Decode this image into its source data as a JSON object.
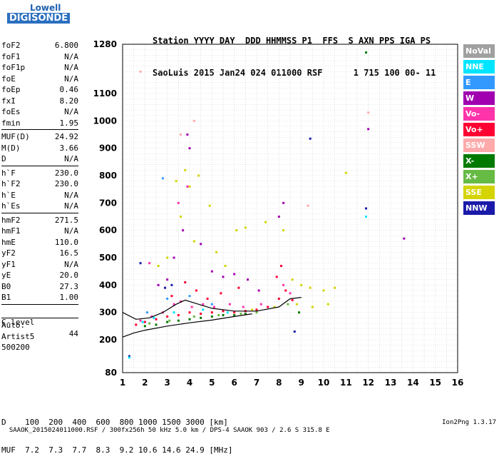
{
  "logo": {
    "brand": "Lowell",
    "product": "DIGISONDE"
  },
  "header": {
    "line1": "Station YYYY DAY  DDD HHMMSS P1  FFS  S AXN PPS IGA PS",
    "line2": "SaoLuis 2015 Jan24 024 011000 RSF      1 715 100 00- 11"
  },
  "params_group1": [
    {
      "key": "foF2",
      "val": "6.800"
    },
    {
      "key": "foF1",
      "val": "N/A"
    },
    {
      "key": "foF1p",
      "val": "N/A"
    },
    {
      "key": "foE",
      "val": "N/A"
    },
    {
      "key": "foEp",
      "val": "0.46"
    },
    {
      "key": "fxI",
      "val": "8.20"
    },
    {
      "key": "foEs",
      "val": "N/A"
    },
    {
      "key": "fmin",
      "val": "1.95"
    }
  ],
  "params_group2": [
    {
      "key": "MUF(D)",
      "val": "24.92"
    },
    {
      "key": "M(D)",
      "val": "3.66"
    },
    {
      "key": "D",
      "val": "N/A"
    }
  ],
  "params_group3": [
    {
      "key": "h`F",
      "val": "230.0"
    },
    {
      "key": "h`F2",
      "val": "230.0"
    },
    {
      "key": "h`E",
      "val": "N/A"
    },
    {
      "key": "h`Es",
      "val": "N/A"
    }
  ],
  "params_group4": [
    {
      "key": "hmF2",
      "val": "271.5"
    },
    {
      "key": "hmF1",
      "val": "N/A"
    },
    {
      "key": "hmE",
      "val": "110.0"
    },
    {
      "key": "yF2",
      "val": "16.5"
    },
    {
      "key": "yF1",
      "val": "N/A"
    },
    {
      "key": "yE",
      "val": "20.0"
    },
    {
      "key": "B0",
      "val": "27.3"
    },
    {
      "key": "B1",
      "val": "1.00"
    }
  ],
  "clevel": {
    "key": "C-level",
    "val": "44"
  },
  "auto": [
    "Auto:",
    "Artist5",
    "500200"
  ],
  "legend": [
    {
      "label": "NoVal",
      "color": "#a0a0a0"
    },
    {
      "label": "NNE",
      "color": "#00e5ff"
    },
    {
      "label": "E",
      "color": "#3399ff"
    },
    {
      "label": "W",
      "color": "#a000b0"
    },
    {
      "label": "Vo-",
      "color": "#ff33aa"
    },
    {
      "label": "Vo+",
      "color": "#ff0033"
    },
    {
      "label": "SSW",
      "color": "#ffaaaa"
    },
    {
      "label": "X-",
      "color": "#007a00"
    },
    {
      "label": "X+",
      "color": "#66bb44"
    },
    {
      "label": "SSE",
      "color": "#d4d400"
    },
    {
      "label": "NNW",
      "color": "#1a1aaa"
    }
  ],
  "footer": {
    "line1": "D    100  200  400  600  800 1000 1500 3000 [km]",
    "line2": "MUF  7.2  7.3  7.7  8.3  9.2 10.6 14.6 24.9 [MHz]"
  },
  "footnote": {
    "left": "SAAOK_2015024011000.RSF / 300fx256h 50 kHz 5.0 km / DPS-4 SAAOK 903 / 2.6 S 315.8 E",
    "right": "Ion2Png 1.3.17"
  },
  "chart_data": {
    "type": "scatter",
    "title": "",
    "xlabel": "",
    "ylabel": "",
    "xlim": [
      1,
      16
    ],
    "ylim": [
      80,
      1280
    ],
    "grid": true,
    "x_ticks": [
      1,
      2,
      3,
      4,
      5,
      6,
      7,
      8,
      9,
      10,
      11,
      12,
      13,
      14,
      15,
      16
    ],
    "y_ticks": [
      80,
      200,
      300,
      400,
      500,
      600,
      700,
      800,
      900,
      1000,
      1100,
      1280
    ],
    "series": [
      {
        "name": "Vo+",
        "points": [
          [
            1.6,
            255
          ],
          [
            2.0,
            265
          ],
          [
            2.5,
            275
          ],
          [
            3.0,
            285
          ],
          [
            3.5,
            290
          ],
          [
            4.0,
            300
          ],
          [
            4.5,
            295
          ],
          [
            5.0,
            300
          ],
          [
            5.5,
            305
          ],
          [
            6.0,
            300
          ],
          [
            6.5,
            305
          ],
          [
            7.0,
            310
          ],
          [
            7.5,
            320
          ],
          [
            8.0,
            350
          ],
          [
            8.3,
            380
          ],
          [
            8.6,
            345
          ],
          [
            3.2,
            360
          ],
          [
            3.8,
            410
          ],
          [
            4.3,
            380
          ],
          [
            4.8,
            350
          ],
          [
            5.4,
            370
          ],
          [
            6.2,
            390
          ],
          [
            7.9,
            430
          ],
          [
            8.1,
            470
          ]
        ]
      },
      {
        "name": "Vo-",
        "points": [
          [
            1.8,
            270
          ],
          [
            2.3,
            285
          ],
          [
            2.8,
            300
          ],
          [
            3.3,
            330
          ],
          [
            3.6,
            340
          ],
          [
            4.1,
            320
          ],
          [
            4.6,
            330
          ],
          [
            5.1,
            320
          ],
          [
            5.8,
            330
          ],
          [
            6.4,
            320
          ],
          [
            7.2,
            330
          ],
          [
            8.2,
            400
          ],
          [
            8.5,
            370
          ],
          [
            2.2,
            480
          ],
          [
            3.5,
            700
          ],
          [
            3.9,
            760
          ]
        ]
      },
      {
        "name": "SSE",
        "points": [
          [
            3.4,
            780
          ],
          [
            3.8,
            820
          ],
          [
            4.0,
            760
          ],
          [
            4.4,
            800
          ],
          [
            4.9,
            690
          ],
          [
            3.6,
            650
          ],
          [
            4.2,
            560
          ],
          [
            5.2,
            520
          ],
          [
            5.6,
            470
          ],
          [
            6.1,
            600
          ],
          [
            6.5,
            610
          ],
          [
            7.4,
            630
          ],
          [
            8.2,
            600
          ],
          [
            8.6,
            420
          ],
          [
            9.0,
            400
          ],
          [
            9.4,
            390
          ],
          [
            10.0,
            380
          ],
          [
            10.5,
            390
          ],
          [
            8.8,
            330
          ],
          [
            9.5,
            320
          ],
          [
            10.2,
            330
          ],
          [
            7.8,
            320
          ],
          [
            6.8,
            310
          ],
          [
            2.6,
            470
          ],
          [
            3.0,
            500
          ],
          [
            11.0,
            810
          ]
        ]
      },
      {
        "name": "W",
        "points": [
          [
            2.6,
            400
          ],
          [
            3.0,
            420
          ],
          [
            3.3,
            500
          ],
          [
            3.7,
            600
          ],
          [
            4.0,
            900
          ],
          [
            3.9,
            950
          ],
          [
            4.5,
            550
          ],
          [
            5.0,
            450
          ],
          [
            5.5,
            430
          ],
          [
            6.0,
            440
          ],
          [
            6.6,
            420
          ],
          [
            7.1,
            380
          ],
          [
            8.0,
            650
          ],
          [
            8.2,
            700
          ],
          [
            12.0,
            970
          ],
          [
            13.6,
            570
          ]
        ]
      },
      {
        "name": "X-",
        "points": [
          [
            2.0,
            250
          ],
          [
            2.5,
            255
          ],
          [
            3.0,
            265
          ],
          [
            3.5,
            270
          ],
          [
            4.0,
            275
          ],
          [
            4.5,
            280
          ],
          [
            5.0,
            285
          ],
          [
            5.5,
            290
          ],
          [
            6.0,
            290
          ],
          [
            6.5,
            295
          ],
          [
            8.9,
            300
          ],
          [
            11.9,
            1250
          ]
        ]
      },
      {
        "name": "X+",
        "points": [
          [
            2.2,
            260
          ],
          [
            3.1,
            270
          ],
          [
            4.2,
            285
          ],
          [
            5.3,
            290
          ],
          [
            6.3,
            295
          ],
          [
            7.0,
            300
          ],
          [
            8.4,
            330
          ]
        ]
      },
      {
        "name": "NNW",
        "points": [
          [
            3.2,
            400
          ],
          [
            2.9,
            390
          ],
          [
            1.8,
            480
          ],
          [
            9.4,
            935
          ],
          [
            11.9,
            680
          ],
          [
            8.7,
            230
          ],
          [
            1.3,
            140
          ]
        ]
      },
      {
        "name": "NNE",
        "points": [
          [
            1.9,
            265
          ],
          [
            2.4,
            280
          ],
          [
            3.3,
            300
          ],
          [
            4.6,
            310
          ],
          [
            5.7,
            300
          ],
          [
            11.9,
            650
          ],
          [
            1.3,
            135
          ]
        ]
      },
      {
        "name": "E",
        "points": [
          [
            2.1,
            300
          ],
          [
            3.0,
            350
          ],
          [
            4.0,
            360
          ],
          [
            5.0,
            330
          ],
          [
            2.8,
            790
          ]
        ]
      },
      {
        "name": "SSW",
        "points": [
          [
            3.6,
            950
          ],
          [
            4.2,
            1000
          ],
          [
            9.3,
            690
          ],
          [
            12.0,
            1030
          ],
          [
            1.8,
            1180
          ]
        ]
      }
    ],
    "profile_line": {
      "name": "",
      "points": [
        [
          1.0,
          210
        ],
        [
          1.5,
          225
        ],
        [
          2.0,
          235
        ],
        [
          3.0,
          250
        ],
        [
          4.0,
          262
        ],
        [
          5.0,
          272
        ],
        [
          6.0,
          285
        ],
        [
          6.8,
          295
        ]
      ]
    },
    "trace_line": {
      "name": "",
      "points": [
        [
          1.0,
          300
        ],
        [
          1.6,
          275
        ],
        [
          2.2,
          280
        ],
        [
          2.8,
          300
        ],
        [
          3.4,
          330
        ],
        [
          3.8,
          345
        ],
        [
          4.2,
          335
        ],
        [
          5.0,
          315
        ],
        [
          6.0,
          305
        ],
        [
          7.0,
          305
        ],
        [
          8.0,
          320
        ],
        [
          8.5,
          350
        ],
        [
          9.0,
          355
        ]
      ]
    }
  }
}
